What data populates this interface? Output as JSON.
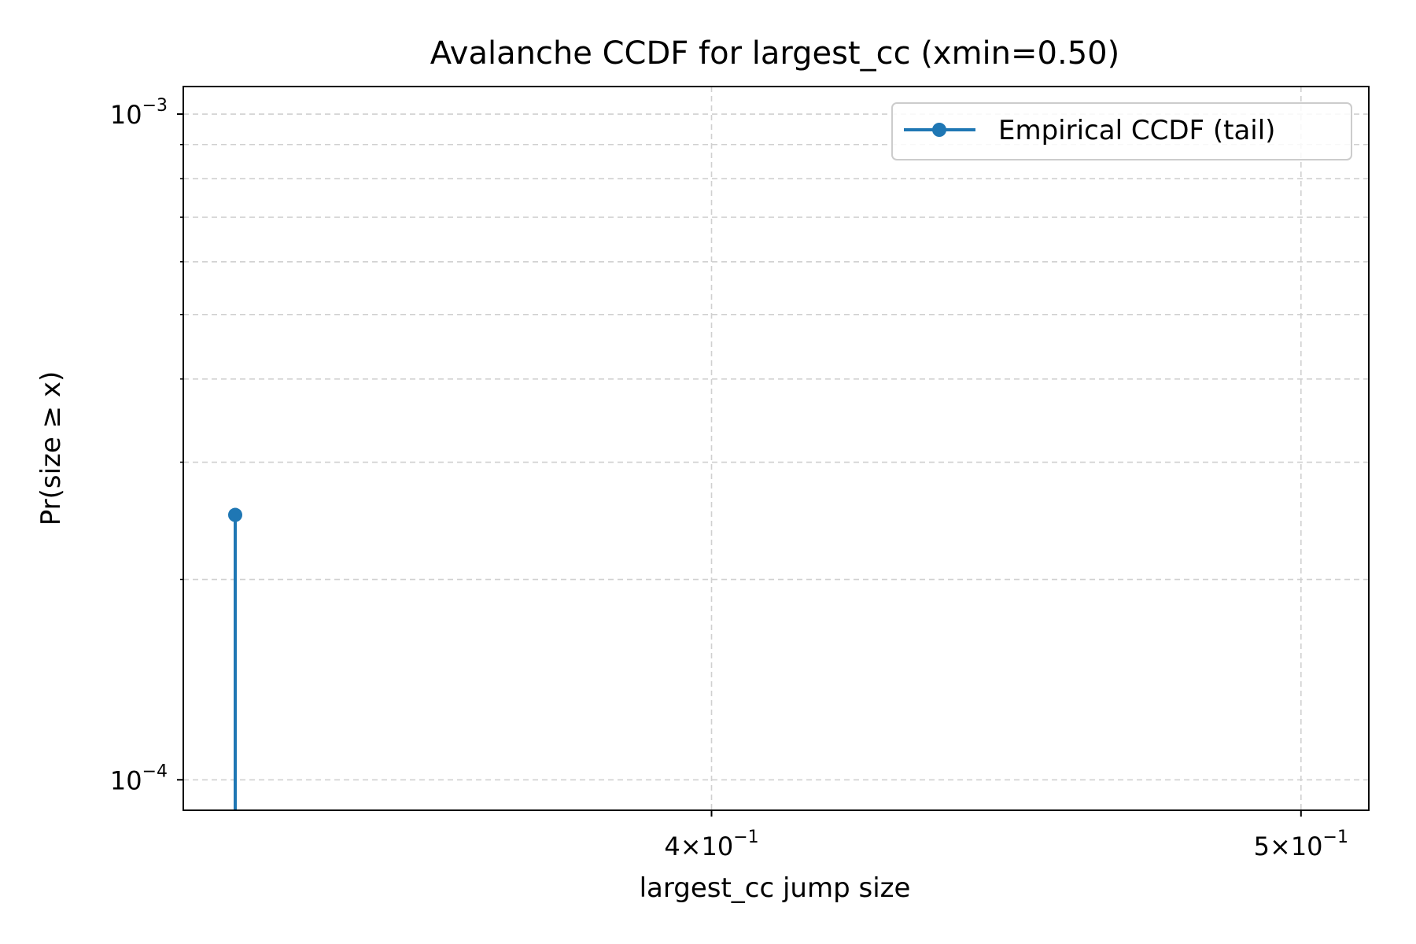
{
  "chart_data": {
    "type": "line",
    "title": "Avalanche CCDF for largest_cc (xmin=0.50)",
    "xlabel": "largest_cc jump size",
    "ylabel": "Pr(size ≥ x)",
    "xscale": "log",
    "yscale": "log",
    "xlim": [
      0.3275,
      0.513
    ],
    "ylim": [
      9e-05,
      0.0011
    ],
    "grid": true,
    "legend_position": "upper right",
    "x_ticks": [
      {
        "value": 0.4,
        "mantissa": "4",
        "exponent": "−1"
      },
      {
        "value": 0.5,
        "mantissa": "5",
        "exponent": "−1"
      }
    ],
    "y_ticks": [
      {
        "value": 0.0001,
        "base": "10",
        "exponent": "−4"
      },
      {
        "value": 0.001,
        "base": "10",
        "exponent": "−3"
      }
    ],
    "series": [
      {
        "name": "Empirical CCDF (tail)",
        "color": "#1f77b4",
        "x": [
          0.334,
          0.334
        ],
        "y": [
          0.00025,
          5e-05
        ]
      }
    ]
  }
}
